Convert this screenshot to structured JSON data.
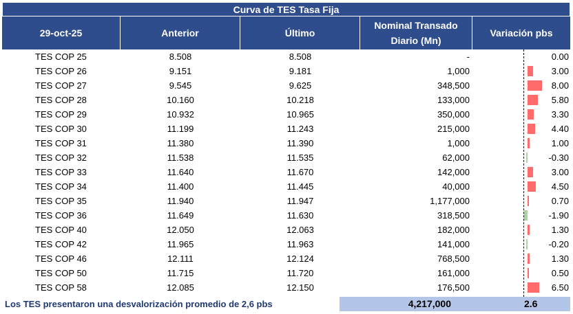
{
  "title": "Curva de TES Tasa Fija",
  "headers": {
    "date": "29-oct-25",
    "prev": "Anterior",
    "last": "Último",
    "nominal_line1": "Nominal Transado",
    "nominal_line2": "Diario (Mn)",
    "variation": "Variación pbs"
  },
  "rows": [
    {
      "name": "TES COP 25",
      "prev": "8.508",
      "last": "8.508",
      "nominal": "-",
      "var": "0.00",
      "var_num": 0.0
    },
    {
      "name": "TES COP 26",
      "prev": "9.151",
      "last": "9.181",
      "nominal": "1,000",
      "var": "3.00",
      "var_num": 3.0
    },
    {
      "name": "TES COP 27",
      "prev": "9.545",
      "last": "9.625",
      "nominal": "348,500",
      "var": "8.00",
      "var_num": 8.0
    },
    {
      "name": "TES COP 28",
      "prev": "10.160",
      "last": "10.218",
      "nominal": "133,000",
      "var": "5.80",
      "var_num": 5.8
    },
    {
      "name": "TES COP 29",
      "prev": "10.932",
      "last": "10.965",
      "nominal": "350,000",
      "var": "3.30",
      "var_num": 3.3
    },
    {
      "name": "TES COP 30",
      "prev": "11.199",
      "last": "11.243",
      "nominal": "215,000",
      "var": "4.40",
      "var_num": 4.4
    },
    {
      "name": "TES COP 31",
      "prev": "11.380",
      "last": "11.390",
      "nominal": "1,000",
      "var": "1.00",
      "var_num": 1.0
    },
    {
      "name": "TES COP 32",
      "prev": "11.538",
      "last": "11.535",
      "nominal": "62,000",
      "var": "-0.30",
      "var_num": -0.3
    },
    {
      "name": "TES COP 33",
      "prev": "11.640",
      "last": "11.670",
      "nominal": "142,000",
      "var": "3.00",
      "var_num": 3.0
    },
    {
      "name": "TES COP 34",
      "prev": "11.400",
      "last": "11.445",
      "nominal": "40,000",
      "var": "4.50",
      "var_num": 4.5
    },
    {
      "name": "TES COP 35",
      "prev": "11.940",
      "last": "11.947",
      "nominal": "1,177,000",
      "var": "0.70",
      "var_num": 0.7
    },
    {
      "name": "TES COP 36",
      "prev": "11.649",
      "last": "11.630",
      "nominal": "318,500",
      "var": "-1.90",
      "var_num": -1.9
    },
    {
      "name": "TES COP 40",
      "prev": "12.050",
      "last": "12.063",
      "nominal": "182,000",
      "var": "1.30",
      "var_num": 1.3
    },
    {
      "name": "TES COP 42",
      "prev": "11.965",
      "last": "11.963",
      "nominal": "141,000",
      "var": "-0.20",
      "var_num": -0.2
    },
    {
      "name": "TES COP 46",
      "prev": "12.111",
      "last": "12.124",
      "nominal": "768,500",
      "var": "1.30",
      "var_num": 1.3
    },
    {
      "name": "TES COP 50",
      "prev": "11.715",
      "last": "11.720",
      "nominal": "161,000",
      "var": "0.50",
      "var_num": 0.5
    },
    {
      "name": "TES COP 58",
      "prev": "12.085",
      "last": "12.150",
      "nominal": "176,500",
      "var": "6.50",
      "var_num": 6.5
    }
  ],
  "footer": {
    "text": "Los TES presentaron una desvalorización promedio de 2,6 pbs",
    "total_nominal": "4,217,000",
    "avg_variation": "2.6"
  },
  "colors": {
    "header_bg": "#2f4d8c",
    "positive_bar": "#ff6b6b",
    "negative_bar": "#a9d5a0",
    "footer_bg": "#b4c6e7"
  }
}
